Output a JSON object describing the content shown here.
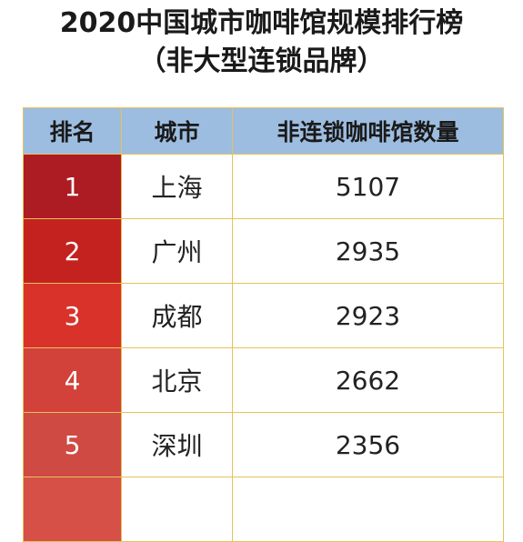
{
  "title": "2020中国城市咖啡馆规模排行榜",
  "subtitle": "（非大型连锁品牌）",
  "table": {
    "headers": [
      "排名",
      "城市",
      "非连锁咖啡馆数量"
    ],
    "rows": [
      {
        "rank": "1",
        "city": "上海",
        "count": "5107",
        "color": "#ad1c22"
      },
      {
        "rank": "2",
        "city": "广州",
        "count": "2935",
        "color": "#c4221f"
      },
      {
        "rank": "3",
        "city": "成都",
        "count": "2923",
        "color": "#d8322a"
      },
      {
        "rank": "4",
        "city": "北京",
        "count": "2662",
        "color": "#d2413a"
      },
      {
        "rank": "5",
        "city": "深圳",
        "count": "2356",
        "color": "#cf4a43"
      },
      {
        "rank": "",
        "city": "",
        "count": "",
        "color": "#d65048"
      }
    ]
  }
}
